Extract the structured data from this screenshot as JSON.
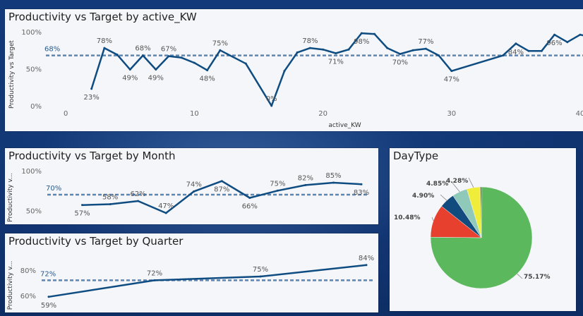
{
  "chart_data": [
    {
      "id": "kw",
      "type": "line",
      "title": "Productivity vs Target by active_KW",
      "xlabel": "active_KW",
      "ylabel": "Productivity vs Target",
      "xlim": [
        -1,
        40
      ],
      "ylim": [
        0,
        100
      ],
      "x_ticks": [
        0,
        10,
        20,
        30,
        40
      ],
      "x_tick_labels": [
        "0",
        "10",
        "20",
        "30",
        "40"
      ],
      "y_ticks": [
        0,
        50,
        100
      ],
      "y_tick_labels": [
        "0%",
        "50%",
        "100%"
      ],
      "reference_line": {
        "value": 68,
        "label": "68%"
      },
      "color": "#0f4c81",
      "ref_color": "#5a86b5",
      "points": [
        {
          "x": 2,
          "y": 23,
          "label": "23%",
          "pos": "below"
        },
        {
          "x": 3,
          "y": 78,
          "label": "78%",
          "pos": "above"
        },
        {
          "x": 4,
          "y": 69
        },
        {
          "x": 5,
          "y": 49,
          "label": "49%",
          "pos": "below"
        },
        {
          "x": 6,
          "y": 68,
          "label": "68%",
          "pos": "above"
        },
        {
          "x": 7,
          "y": 49,
          "label": "49%",
          "pos": "below"
        },
        {
          "x": 8,
          "y": 67,
          "label": "67%",
          "pos": "above"
        },
        {
          "x": 9,
          "y": 65
        },
        {
          "x": 10,
          "y": 58
        },
        {
          "x": 11,
          "y": 48,
          "label": "48%",
          "pos": "below"
        },
        {
          "x": 12,
          "y": 75,
          "label": "75%",
          "pos": "above"
        },
        {
          "x": 14,
          "y": 57
        },
        {
          "x": 16,
          "y": 0,
          "label": "0%",
          "pos": "above"
        },
        {
          "x": 17,
          "y": 47
        },
        {
          "x": 18,
          "y": 72
        },
        {
          "x": 19,
          "y": 78,
          "label": "78%",
          "pos": "above"
        },
        {
          "x": 20,
          "y": 76
        },
        {
          "x": 21,
          "y": 71,
          "label": "71%",
          "pos": "below"
        },
        {
          "x": 22,
          "y": 76
        },
        {
          "x": 23,
          "y": 98,
          "label": "98%",
          "pos": "below"
        },
        {
          "x": 24,
          "y": 97
        },
        {
          "x": 25,
          "y": 78
        },
        {
          "x": 26,
          "y": 70,
          "label": "70%",
          "pos": "below"
        },
        {
          "x": 27,
          "y": 75
        },
        {
          "x": 28,
          "y": 77,
          "label": "77%",
          "pos": "above"
        },
        {
          "x": 29,
          "y": 68
        },
        {
          "x": 30,
          "y": 47,
          "label": "47%",
          "pos": "below"
        },
        {
          "x": 34,
          "y": 68
        },
        {
          "x": 35,
          "y": 84,
          "label": "84%",
          "pos": "below"
        },
        {
          "x": 36,
          "y": 74
        },
        {
          "x": 37,
          "y": 74
        },
        {
          "x": 38,
          "y": 96,
          "label": "96%",
          "pos": "below"
        },
        {
          "x": 39,
          "y": 86
        },
        {
          "x": 40,
          "y": 96
        },
        {
          "x": 41,
          "y": 92
        }
      ]
    },
    {
      "id": "month",
      "type": "line",
      "title": "Productivity vs Target by Month",
      "xlabel": "",
      "ylabel": "Productivity v...",
      "xlim": [
        0,
        11
      ],
      "ylim": [
        47,
        100
      ],
      "y_ticks": [
        50,
        100
      ],
      "y_tick_labels": [
        "50%",
        "100%"
      ],
      "reference_line": {
        "value": 70,
        "label": "70%"
      },
      "color": "#0f4c81",
      "ref_color": "#5a86b5",
      "points": [
        {
          "x": 1,
          "y": 57,
          "label": "57%",
          "pos": "below"
        },
        {
          "x": 2,
          "y": 58,
          "label": "58%",
          "pos": "above"
        },
        {
          "x": 3,
          "y": 62,
          "label": "62%",
          "pos": "above"
        },
        {
          "x": 4,
          "y": 47,
          "label": "47%",
          "pos": "above"
        },
        {
          "x": 5,
          "y": 74,
          "label": "74%",
          "pos": "above"
        },
        {
          "x": 6,
          "y": 87,
          "label": "87%",
          "pos": "below"
        },
        {
          "x": 7,
          "y": 66,
          "label": "66%",
          "pos": "below"
        },
        {
          "x": 8,
          "y": 75,
          "label": "75%",
          "pos": "above"
        },
        {
          "x": 9,
          "y": 82,
          "label": "82%",
          "pos": "above"
        },
        {
          "x": 10,
          "y": 85,
          "label": "85%",
          "pos": "above"
        },
        {
          "x": 11,
          "y": 83,
          "label": "83%",
          "pos": "below"
        }
      ]
    },
    {
      "id": "quarter",
      "type": "line",
      "title": "Productivity vs Target by Quarter",
      "xlabel": "",
      "ylabel": "Productivity v...",
      "xlim": [
        1,
        4
      ],
      "ylim": [
        55,
        90
      ],
      "y_ticks": [
        60,
        80
      ],
      "y_tick_labels": [
        "60%",
        "80%"
      ],
      "reference_line": {
        "value": 72,
        "label": "72%"
      },
      "color": "#0f4c81",
      "ref_color": "#5a86b5",
      "points": [
        {
          "x": 1,
          "y": 59,
          "label": "59%",
          "pos": "below"
        },
        {
          "x": 2,
          "y": 72,
          "label": "72%",
          "pos": "above"
        },
        {
          "x": 3,
          "y": 75,
          "label": "75%",
          "pos": "above"
        },
        {
          "x": 4,
          "y": 84,
          "label": "84%",
          "pos": "above"
        }
      ]
    },
    {
      "id": "daytype",
      "type": "pie",
      "title": "DayType",
      "slices": [
        {
          "value": 75.17,
          "label": "75.17%",
          "color": "#5cb85c"
        },
        {
          "value": 10.48,
          "label": "10.48%",
          "color": "#e8402f"
        },
        {
          "value": 4.9,
          "label": "4.90%",
          "color": "#124b7e"
        },
        {
          "value": 4.85,
          "label": "4.85%",
          "color": "#8fc9b9"
        },
        {
          "value": 4.28,
          "label": "4.28%",
          "color": "#f0ec3a"
        },
        {
          "value": 0.32,
          "label": "",
          "color": "#222222"
        }
      ]
    }
  ]
}
